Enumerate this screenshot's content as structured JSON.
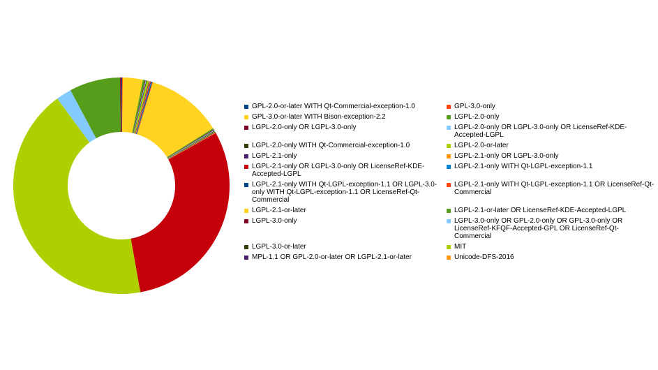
{
  "chart_data": {
    "type": "pie",
    "donut": true,
    "title": "",
    "legend_position": "right",
    "series": [
      {
        "label": "GPL-2.0-or-later WITH Qt-Commercial-exception-1.0",
        "value": 0.1,
        "color": "#004586"
      },
      {
        "label": "GPL-3.0-only",
        "value": 0.1,
        "color": "#ff420e"
      },
      {
        "label": "GPL-3.0-or-later WITH Bison-exception-2.2",
        "value": 3.0,
        "color": "#ffd320"
      },
      {
        "label": "LGPL-2.0-only",
        "value": 0.3,
        "color": "#579d1c"
      },
      {
        "label": "LGPL-2.0-only OR LGPL-3.0-only",
        "value": 0.1,
        "color": "#7e0021"
      },
      {
        "label": "LGPL-2.0-only OR LGPL-3.0-only OR LicenseRef-KDE-Accepted-LGPL",
        "value": 0.1,
        "color": "#83caff"
      },
      {
        "label": "LGPL-2.0-only WITH Qt-Commercial-exception-1.0",
        "value": 0.1,
        "color": "#314004"
      },
      {
        "label": "LGPL-2.0-or-later",
        "value": 0.3,
        "color": "#aecf00"
      },
      {
        "label": "LGPL-2.1-only",
        "value": 0.1,
        "color": "#4b1f6f"
      },
      {
        "label": "LGPL-2.1-only OR LGPL-3.0-only",
        "value": 0.1,
        "color": "#ff950e"
      },
      {
        "label": "LGPL-2.1-only OR LGPL-3.0-only OR LicenseRef-KDE-Accepted-LGPL",
        "value": 0.1,
        "color": "#c5000b"
      },
      {
        "label": "LGPL-2.1-only WITH Qt-LGPL-exception-1.1",
        "value": 0.1,
        "color": "#0084d1"
      },
      {
        "label": "LGPL-2.1-only WITH Qt-LGPL-exception-1.1 OR LGPL-3.0-only WITH Qt-LGPL-exception-1.1 OR LicenseRef-Qt-Commercial",
        "value": 0.1,
        "color": "#004586"
      },
      {
        "label": "LGPL-2.1-only WITH Qt-LGPL-exception-1.1 OR LicenseRef-Qt-Commercial",
        "value": 0.1,
        "color": "#ff420e"
      },
      {
        "label": "LGPL-2.1-or-later",
        "value": 11.4,
        "color": "#ffd320"
      },
      {
        "label": "LGPL-2.1-or-later OR LicenseRef-KDE-Accepted-LGPL",
        "value": 0.2,
        "color": "#579d1c"
      },
      {
        "label": "LGPL-3.0-only",
        "value": 0.1,
        "color": "#7e0021"
      },
      {
        "label": "LGPL-3.0-only OR GPL-2.0-only OR GPL-3.0-only OR LicenseRef-KFQF-Accepted-GPL OR LicenseRef-Qt-Commercial",
        "value": 0.1,
        "color": "#83caff"
      },
      {
        "label": "LGPL-3.0-or-later",
        "value": 0.1,
        "color": "#314004"
      },
      {
        "label": "MIT",
        "value": 0.1,
        "color": "#aecf00"
      },
      {
        "label": "MPL-1.1 OR GPL-2.0-or-later OR LGPL-2.1-or-later",
        "value": 0.1,
        "color": "#4b1f6f"
      },
      {
        "label": "Unicode-DFS-2016",
        "value": 0.1,
        "color": "#ff950e"
      },
      {
        "label": "LGPL-2.1-only OR LGPL-3.0-only OR LicenseRef-KDE-Accepted-LGPL",
        "value": 30.3,
        "color": "#c5000b",
        "legend": false
      },
      {
        "label": "LGPL-2.0-or-later",
        "value": 42.7,
        "color": "#aecf00",
        "legend": false
      },
      {
        "label": "LGPL-3.0-only OR GPL-2.0-only OR GPL-3.0-only OR LicenseRef-KFQF-Accepted-GPL OR LicenseRef-Qt-Commercial",
        "value": 2.3,
        "color": "#83caff",
        "legend": false
      },
      {
        "label": "LGPL-2.1-or-later OR LicenseRef-KDE-Accepted-LGPL",
        "value": 7.6,
        "color": "#579d1c",
        "legend": false
      },
      {
        "label": "LGPL-3.0-only",
        "value": 0.2,
        "color": "#7e0021",
        "legend": false
      }
    ]
  },
  "legend_items": [
    {
      "label": "GPL-2.0-or-later WITH Qt-Commercial-exception-1.0",
      "color": "#004586"
    },
    {
      "label": "GPL-3.0-only",
      "color": "#ff420e"
    },
    {
      "label": "GPL-3.0-or-later WITH Bison-exception-2.2",
      "color": "#ffd320"
    },
    {
      "label": "LGPL-2.0-only",
      "color": "#579d1c"
    },
    {
      "label": "LGPL-2.0-only OR LGPL-3.0-only",
      "color": "#7e0021"
    },
    {
      "label": "LGPL-2.0-only OR LGPL-3.0-only OR LicenseRef-KDE-Accepted-LGPL",
      "color": "#83caff"
    },
    {
      "label": "LGPL-2.0-only WITH Qt-Commercial-exception-1.0",
      "color": "#314004"
    },
    {
      "label": "LGPL-2.0-or-later",
      "color": "#aecf00"
    },
    {
      "label": "LGPL-2.1-only",
      "color": "#4b1f6f"
    },
    {
      "label": "LGPL-2.1-only OR LGPL-3.0-only",
      "color": "#ff950e"
    },
    {
      "label": "LGPL-2.1-only OR LGPL-3.0-only OR LicenseRef-KDE-Accepted-LGPL",
      "color": "#c5000b"
    },
    {
      "label": "LGPL-2.1-only WITH Qt-LGPL-exception-1.1",
      "color": "#0084d1"
    },
    {
      "label": "LGPL-2.1-only WITH Qt-LGPL-exception-1.1 OR LGPL-3.0-only WITH Qt-LGPL-exception-1.1 OR LicenseRef-Qt-Commercial",
      "color": "#004586"
    },
    {
      "label": "LGPL-2.1-only WITH Qt-LGPL-exception-1.1 OR LicenseRef-Qt-Commercial",
      "color": "#ff420e"
    },
    {
      "label": "LGPL-2.1-or-later",
      "color": "#ffd320"
    },
    {
      "label": "LGPL-2.1-or-later OR LicenseRef-KDE-Accepted-LGPL",
      "color": "#579d1c"
    },
    {
      "label": "LGPL-3.0-only",
      "color": "#7e0021"
    },
    {
      "label": "LGPL-3.0-only OR GPL-2.0-only OR GPL-3.0-only OR LicenseRef-KFQF-Accepted-GPL OR LicenseRef-Qt-Commercial",
      "color": "#83caff"
    },
    {
      "label": "LGPL-3.0-or-later",
      "color": "#314004"
    },
    {
      "label": "MIT",
      "color": "#aecf00"
    },
    {
      "label": "MPL-1.1 OR GPL-2.0-or-later OR LGPL-2.1-or-later",
      "color": "#4b1f6f"
    },
    {
      "label": "Unicode-DFS-2016",
      "color": "#ff950e"
    }
  ]
}
